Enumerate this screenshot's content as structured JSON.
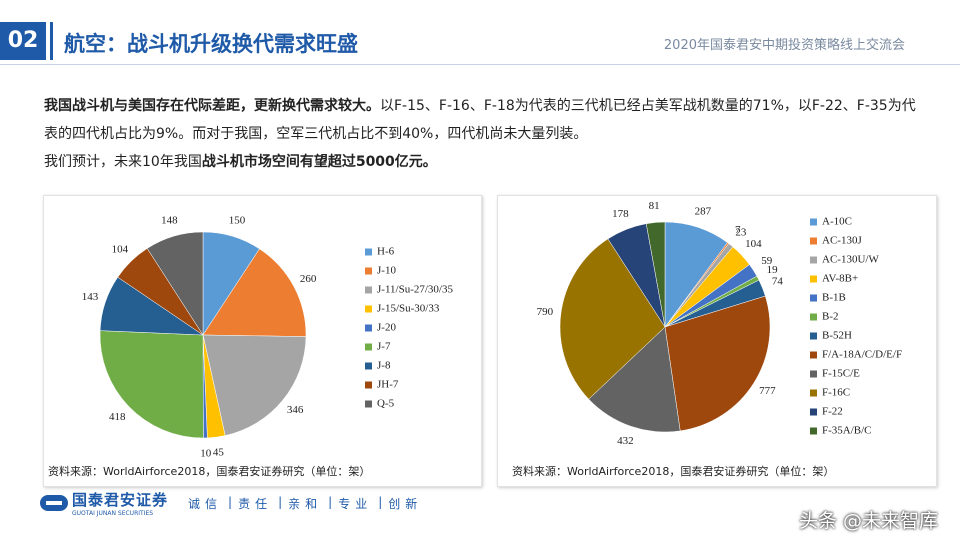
{
  "header": {
    "number": "02",
    "title": "航空：战斗机升级换代需求旺盛",
    "event": "2020年国泰君安中期投资策略线上交流会"
  },
  "paragraphs": [
    [
      {
        "text": "我国战斗机与美国存在代际差距，更新换代需求较大。",
        "bold": true
      },
      {
        "text": "以F-15、F-16、F-18为代表的三代机已经占美军战机数量的71%，以F-22、F-35为代表的四代机占比为9%。而对于我国，空军三代机占比不到40%，四代机尚未大量列装。",
        "bold": false
      }
    ],
    [
      {
        "text": "我们预计，未来10年我国",
        "bold": false
      },
      {
        "text": "战斗机市场空间有望超过5000亿元。",
        "bold": true
      }
    ]
  ],
  "chart_data": [
    {
      "type": "pie",
      "categories": [
        "H-6",
        "J-10",
        "J-11/Su-27/30/35",
        "J-15/Su-30/33",
        "J-20",
        "J-7",
        "J-8",
        "JH-7",
        "Q-5"
      ],
      "values": [
        150,
        260,
        346,
        45,
        10,
        418,
        143,
        104,
        148
      ],
      "colors": [
        "#5b9bd5",
        "#ed7d31",
        "#a5a5a5",
        "#ffc000",
        "#4472c4",
        "#70ad47",
        "#255e91",
        "#9e480e",
        "#636363"
      ],
      "legend": "right",
      "source": "资料来源：WorldAirforce2018，国泰君安证券研究（单位：架）"
    },
    {
      "type": "pie",
      "categories": [
        "A-10C",
        "AC-130J",
        "AC-130U/W",
        "AV-8B+",
        "B-1B",
        "B-2",
        "B-52H",
        "F/A-18A/C/D/E/F",
        "F-15C/E",
        "F-16C",
        "F-22",
        "F-35A/B/C"
      ],
      "values": [
        287,
        7,
        23,
        104,
        59,
        19,
        74,
        777,
        432,
        790,
        178,
        81
      ],
      "colors": [
        "#5b9bd5",
        "#ed7d31",
        "#a5a5a5",
        "#ffc000",
        "#4472c4",
        "#70ad47",
        "#255e91",
        "#9e480e",
        "#636363",
        "#997300",
        "#264478",
        "#43682b"
      ],
      "legend": "right",
      "source": "资料来源：WorldAirforce2018，国泰君安证券研究（单位：架）"
    }
  ],
  "footer": {
    "brand": "国泰君安证券",
    "brand_en": "GUOTAI JUNAN SECURITIES",
    "values": [
      "诚信",
      "责任",
      "亲和",
      "专业",
      "创新"
    ],
    "watermark": "头条 @未来智库"
  }
}
